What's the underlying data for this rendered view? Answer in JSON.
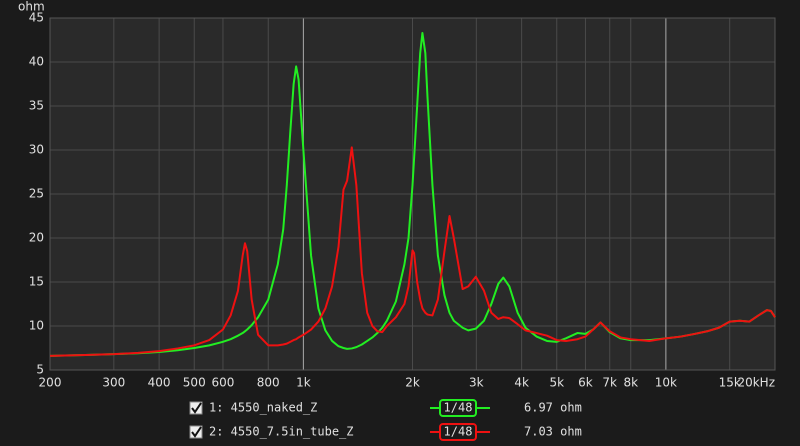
{
  "chart_data": {
    "type": "line",
    "y_label": "ohm",
    "xscale": "log",
    "grid": true,
    "xlim": [
      200,
      20000
    ],
    "ylim": [
      5,
      45
    ],
    "yticks": [
      5,
      10,
      15,
      20,
      25,
      30,
      35,
      40,
      45
    ],
    "xticks": [
      200,
      300,
      400,
      500,
      600,
      800,
      {
        "value": 1000,
        "label": "1k"
      },
      {
        "value": 2000,
        "label": "2k"
      },
      {
        "value": 3000,
        "label": "3k"
      },
      {
        "value": 4000,
        "label": "4k"
      },
      {
        "value": 5000,
        "label": "5k"
      },
      {
        "value": 6000,
        "label": "6k"
      },
      {
        "value": 7000,
        "label": "7k"
      },
      {
        "value": 8000,
        "label": "8k"
      },
      {
        "value": 10000,
        "label": "10k"
      },
      {
        "value": 15000,
        "label": "15k"
      },
      {
        "value": 20000,
        "label": "20kHz"
      }
    ],
    "x": [
      200,
      250,
      300,
      350,
      400,
      450,
      500,
      550,
      600,
      630,
      660,
      680,
      690,
      700,
      720,
      750,
      800,
      850,
      880,
      900,
      920,
      940,
      955,
      970,
      1000,
      1050,
      1100,
      1150,
      1200,
      1250,
      1290,
      1320,
      1360,
      1400,
      1450,
      1500,
      1550,
      1600,
      1650,
      1700,
      1800,
      1900,
      1950,
      2000,
      2020,
      2060,
      2100,
      2130,
      2170,
      2200,
      2270,
      2350,
      2450,
      2530,
      2600,
      2750,
      2850,
      2990,
      3150,
      3300,
      3450,
      3560,
      3700,
      3900,
      4100,
      4400,
      4700,
      5000,
      5300,
      5700,
      6000,
      6300,
      6600,
      7000,
      7500,
      8000,
      9000,
      10000,
      11000,
      12000,
      13000,
      14000,
      15000,
      16000,
      17000,
      18000,
      19000,
      19500,
      20000
    ],
    "series": [
      {
        "name": "1: 4550_naked_Z",
        "color": "#22ee22",
        "smoothing": "1/48",
        "readout": "6.97 ohm",
        "values": [
          6.6,
          6.7,
          6.8,
          6.9,
          7.05,
          7.25,
          7.5,
          7.8,
          8.2,
          8.5,
          8.9,
          9.2,
          9.4,
          9.6,
          10.1,
          11.0,
          13.0,
          17,
          21,
          26,
          32,
          37.5,
          39.5,
          38,
          30,
          18,
          12,
          9.5,
          8.3,
          7.7,
          7.5,
          7.4,
          7.45,
          7.6,
          7.9,
          8.3,
          8.7,
          9.2,
          9.8,
          10.6,
          12.8,
          17,
          20,
          26,
          29,
          35,
          41,
          43.3,
          41,
          36,
          26,
          18,
          13.5,
          11.5,
          10.6,
          9.8,
          9.5,
          9.7,
          10.6,
          12.5,
          14.8,
          15.5,
          14.5,
          11.5,
          9.8,
          8.8,
          8.3,
          8.2,
          8.6,
          9.2,
          9.1,
          9.6,
          10.4,
          9.3,
          8.6,
          8.4,
          8.4,
          8.6,
          8.8,
          9.1,
          9.4,
          9.8,
          10.5,
          10.6,
          10.5,
          11.2,
          11.8,
          11.7,
          11
        ]
      },
      {
        "name": "2: 4550_7.5in_tube_Z",
        "color": "#ee1111",
        "smoothing": "1/48",
        "readout": "7.03 ohm",
        "values": [
          6.6,
          6.7,
          6.8,
          6.95,
          7.15,
          7.45,
          7.8,
          8.4,
          9.6,
          11.2,
          14,
          18,
          19.4,
          18.5,
          13,
          9,
          7.8,
          7.8,
          7.9,
          8.0,
          8.2,
          8.4,
          8.5,
          8.7,
          9.0,
          9.6,
          10.5,
          12,
          14.5,
          19,
          25.5,
          26.5,
          30.3,
          26,
          16,
          11.5,
          10,
          9.4,
          9.3,
          10,
          11,
          12.5,
          14.5,
          18.6,
          18.3,
          15,
          13,
          12,
          11.5,
          11.3,
          11.2,
          13,
          18.5,
          22.5,
          20,
          14.2,
          14.5,
          15.6,
          14,
          11.5,
          10.8,
          11,
          10.9,
          10.2,
          9.5,
          9.2,
          8.9,
          8.4,
          8.3,
          8.5,
          8.8,
          9.6,
          10.4,
          9.4,
          8.7,
          8.5,
          8.3,
          8.6,
          8.8,
          9.1,
          9.4,
          9.8,
          10.5,
          10.6,
          10.5,
          11.2,
          11.8,
          11.7,
          11
        ]
      }
    ]
  }
}
